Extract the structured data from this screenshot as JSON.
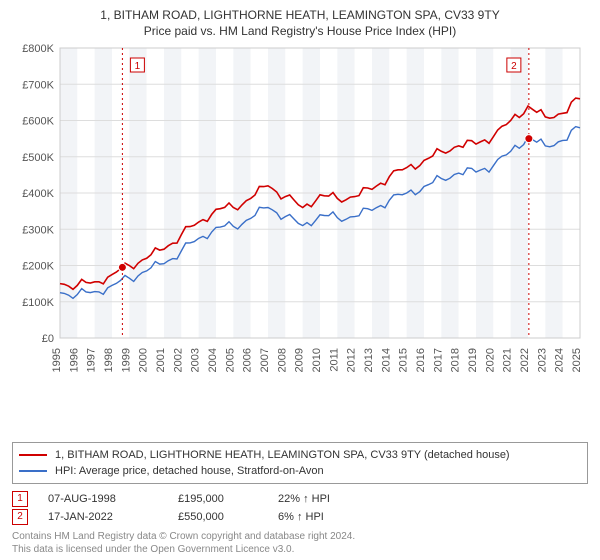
{
  "title": "1, BITHAM ROAD, LIGHTHORNE HEATH, LEAMINGTON SPA, CV33 9TY",
  "subtitle": "Price paid vs. HM Land Registry's House Price Index (HPI)",
  "chart": {
    "background_bands_color": "#f2f4f7",
    "background_white": "#ffffff",
    "frame_color": "#cccccc",
    "grid_color": "#dddddd",
    "axis_text_color": "#555555",
    "tick_fontsize": 11,
    "years": [
      1995,
      1996,
      1997,
      1998,
      1999,
      2000,
      2001,
      2002,
      2003,
      2004,
      2005,
      2006,
      2007,
      2008,
      2009,
      2010,
      2011,
      2012,
      2013,
      2014,
      2015,
      2016,
      2017,
      2018,
      2019,
      2020,
      2021,
      2022,
      2023,
      2024,
      2025
    ],
    "ylim": [
      0,
      800000
    ],
    "ytick_step": 100000,
    "y_labels": [
      "£0",
      "£100K",
      "£200K",
      "£300K",
      "£400K",
      "£500K",
      "£600K",
      "£700K",
      "£800K"
    ],
    "series_price": {
      "color": "#d00000",
      "width": 1.6,
      "label": "1, BITHAM ROAD, LIGHTHORNE HEATH, LEAMINGTON SPA, CV33 9TY (detached house)",
      "values_by_year": {
        "1995": 150000,
        "1996": 145000,
        "1997": 155000,
        "1998": 175000,
        "1999": 200000,
        "2000": 220000,
        "2001": 245000,
        "2002": 285000,
        "2003": 320000,
        "2004": 355000,
        "2005": 360000,
        "2006": 385000,
        "2007": 420000,
        "2008": 390000,
        "2009": 360000,
        "2010": 395000,
        "2011": 385000,
        "2012": 390000,
        "2013": 410000,
        "2014": 445000,
        "2015": 470000,
        "2016": 490000,
        "2017": 515000,
        "2018": 530000,
        "2019": 535000,
        "2020": 555000,
        "2021": 600000,
        "2022": 640000,
        "2023": 610000,
        "2024": 620000,
        "2025": 660000
      }
    },
    "series_hpi": {
      "color": "#3a6fc8",
      "width": 1.4,
      "label": "HPI: Average price, detached house, Stratford-on-Avon",
      "values_by_year": {
        "1995": 125000,
        "1996": 120000,
        "1997": 128000,
        "1998": 145000,
        "1999": 165000,
        "2000": 185000,
        "2001": 205000,
        "2002": 240000,
        "2003": 275000,
        "2004": 305000,
        "2005": 308000,
        "2006": 330000,
        "2007": 360000,
        "2008": 335000,
        "2009": 310000,
        "2010": 340000,
        "2011": 332000,
        "2012": 335000,
        "2013": 352000,
        "2014": 380000,
        "2015": 400000,
        "2016": 418000,
        "2017": 440000,
        "2018": 455000,
        "2019": 458000,
        "2020": 475000,
        "2021": 515000,
        "2022": 555000,
        "2023": 530000,
        "2024": 545000,
        "2025": 580000
      }
    },
    "event_line_color": "#cc0000",
    "event_marker_border": "#cc0000",
    "event_marker_fontsize": 10,
    "events": [
      {
        "id": "1",
        "year": 1998.6,
        "date": "07-AUG-1998",
        "price_label": "£195,000",
        "delta": "22% ↑ HPI",
        "dot_value": 195000
      },
      {
        "id": "2",
        "year": 2022.05,
        "date": "17-JAN-2022",
        "price_label": "£550,000",
        "delta": "6% ↑ HPI",
        "dot_value": 550000
      }
    ],
    "noise_amp": 8000
  },
  "attribution_line1": "Contains HM Land Registry data © Crown copyright and database right 2024.",
  "attribution_line2": "This data is licensed under the Open Government Licence v3.0."
}
